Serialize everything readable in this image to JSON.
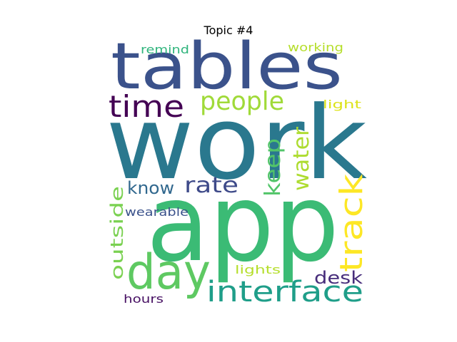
{
  "title": "Topic #4",
  "words": [
    {
      "text": "work",
      "color": "#2a788e"
    },
    {
      "text": "app",
      "color": "#3bbb75"
    },
    {
      "text": "tables",
      "color": "#3b528b"
    },
    {
      "text": "day",
      "color": "#5ec962"
    },
    {
      "text": "interface",
      "color": "#1f9e89"
    },
    {
      "text": "time",
      "color": "#440154"
    },
    {
      "text": "people",
      "color": "#a0da39"
    },
    {
      "text": "track",
      "color": "#fde725"
    },
    {
      "text": "keep",
      "color": "#52c569"
    },
    {
      "text": "water",
      "color": "#addc30"
    },
    {
      "text": "rate",
      "color": "#3e4a89"
    },
    {
      "text": "know",
      "color": "#31688e"
    },
    {
      "text": "outside",
      "color": "#7ad151"
    },
    {
      "text": "desk",
      "color": "#472d7b"
    },
    {
      "text": "wearable",
      "color": "#3b528b"
    },
    {
      "text": "lights",
      "color": "#b5de2b"
    },
    {
      "text": "hours",
      "color": "#471063"
    },
    {
      "text": "remind",
      "color": "#2fb47c"
    },
    {
      "text": "working",
      "color": "#b5de2b"
    },
    {
      "text": "light",
      "color": "#dde318"
    }
  ]
}
